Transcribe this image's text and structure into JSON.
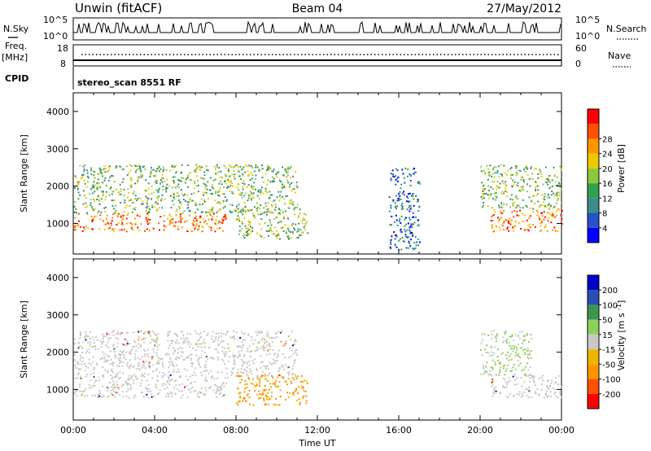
{
  "header": {
    "station": "Unwin (fitACF)",
    "beam": "Beam 04",
    "date": "27/May/2012"
  },
  "top_panels": {
    "nsky_label": "N.Sky",
    "nsky_scale_top": "10^5",
    "nsky_scale_bottom": "10^0",
    "nsearch_label": "N.Search",
    "nsearch_scale_top": "10^5",
    "nsearch_scale_bottom": "10^0",
    "freq_label": "Freq.",
    "freq_unit": "[MHz]",
    "freq_ticks": [
      "18",
      "8"
    ],
    "nave_label": "Nave",
    "nave_ticks": [
      "60",
      "0"
    ],
    "cpid_label": "CPID",
    "cpid_text": "stereo_scan 8551 RF"
  },
  "chart_data": [
    {
      "type": "heatmap",
      "name": "power",
      "ylabel": "Slant Range [km]",
      "yticks": [
        1000,
        2000,
        3000,
        4000
      ],
      "ylim": [
        180,
        4500
      ],
      "x_range_hours": [
        0,
        24
      ],
      "colorbar": {
        "label": "Power [dB]",
        "ticks": [
          "4",
          "8",
          "12",
          "16",
          "20",
          "24",
          "28"
        ],
        "colors": [
          "#0000ff",
          "#2850c8",
          "#3c8c8c",
          "#32a050",
          "#8cc83c",
          "#f0c800",
          "#ff9600",
          "#ff5000",
          "#ff0000"
        ]
      },
      "features": [
        {
          "t0": 0.0,
          "t1": 7.5,
          "r0": 800,
          "r1": 1300,
          "level": "strong"
        },
        {
          "t0": 0.0,
          "t1": 11.0,
          "r0": 1300,
          "r1": 2600,
          "level": "medium"
        },
        {
          "t0": 8.0,
          "t1": 11.5,
          "r0": 600,
          "r1": 1400,
          "level": "medium"
        },
        {
          "t0": 15.5,
          "t1": 17.0,
          "r0": 300,
          "r1": 2500,
          "level": "weak"
        },
        {
          "t0": 20.5,
          "t1": 24.0,
          "r0": 800,
          "r1": 1400,
          "level": "strong"
        },
        {
          "t0": 20.0,
          "t1": 24.0,
          "r0": 1400,
          "r1": 2600,
          "level": "medium"
        }
      ]
    },
    {
      "type": "heatmap",
      "name": "velocity",
      "ylabel": "Slant Range [km]",
      "yticks": [
        1000,
        2000,
        3000,
        4000
      ],
      "ylim": [
        180,
        4500
      ],
      "xticks": [
        "00:00",
        "04:00",
        "08:00",
        "12:00",
        "16:00",
        "20:00",
        "00:00"
      ],
      "xlabel": "Time UT",
      "colorbar": {
        "label": "Velocity [m s^-1]",
        "ticks": [
          "-200",
          "-100",
          "-50",
          "-15",
          "15",
          "50",
          "100",
          "200"
        ],
        "colors": [
          "#ff0000",
          "#ff5000",
          "#ff9600",
          "#f0b400",
          "#c8c8c8",
          "#8cd25a",
          "#3c9650",
          "#2850b4",
          "#0000c8"
        ]
      },
      "features": [
        {
          "t0": 0.0,
          "t1": 7.5,
          "r0": 800,
          "r1": 1300,
          "level": "ground"
        },
        {
          "t0": 0.0,
          "t1": 11.0,
          "r0": 1300,
          "r1": 2600,
          "level": "ground"
        },
        {
          "t0": 8.0,
          "t1": 11.5,
          "r0": 600,
          "r1": 1400,
          "level": "neg"
        },
        {
          "t0": 20.5,
          "t1": 24.0,
          "r0": 800,
          "r1": 1400,
          "level": "ground"
        },
        {
          "t0": 20.0,
          "t1": 22.5,
          "r0": 1400,
          "r1": 2600,
          "level": "pos"
        }
      ]
    }
  ]
}
